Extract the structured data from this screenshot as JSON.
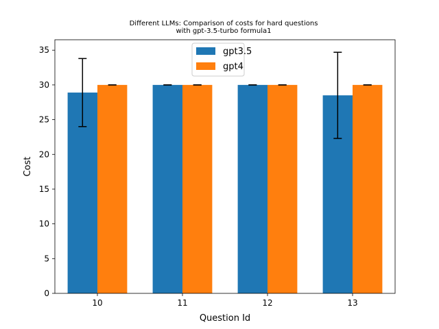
{
  "chart_data": {
    "type": "bar",
    "title_lines": [
      "Different LLMs: Comparison of costs for hard questions",
      "with gpt-3.5-turbo formula1"
    ],
    "xlabel": "Question Id",
    "ylabel": "Cost",
    "categories": [
      "10",
      "11",
      "12",
      "13"
    ],
    "ylim": [
      0,
      36.5
    ],
    "yticks": [
      0,
      5,
      10,
      15,
      20,
      25,
      30,
      35
    ],
    "series": [
      {
        "name": "gpt3.5",
        "color": "#1f77b4",
        "values": [
          28.9,
          30.0,
          30.0,
          28.5
        ],
        "errors": [
          4.9,
          0.0,
          0.0,
          6.2
        ]
      },
      {
        "name": "gpt4",
        "color": "#ff7f0e",
        "values": [
          30.0,
          30.0,
          30.0,
          30.0
        ],
        "errors": [
          0.0,
          0.0,
          0.0,
          0.0
        ]
      }
    ],
    "legend_position": "upper-center",
    "grid": false
  }
}
